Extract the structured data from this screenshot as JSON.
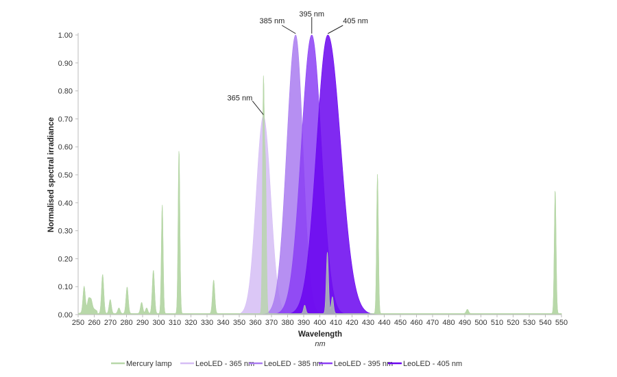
{
  "chart_data": {
    "type": "area",
    "title": "",
    "xlabel": "Wavelength",
    "xunit": "nm",
    "ylabel": "Normalised spectral irradiance",
    "xlim": [
      250,
      550
    ],
    "ylim": [
      0,
      1.0
    ],
    "xticks": [
      250,
      260,
      270,
      280,
      290,
      300,
      310,
      320,
      330,
      340,
      350,
      360,
      370,
      380,
      390,
      400,
      410,
      420,
      430,
      440,
      450,
      460,
      470,
      480,
      490,
      500,
      510,
      520,
      530,
      540,
      550
    ],
    "yticks": [
      "0.00",
      "0.10",
      "0.20",
      "0.30",
      "0.40",
      "0.50",
      "0.60",
      "0.70",
      "0.80",
      "0.90",
      "1.00"
    ],
    "grid": false,
    "legend_position": "bottom",
    "series": [
      {
        "name": "Mercury lamp",
        "color": "#b7d7a8",
        "peaks": [
          [
            253.7,
            0.09
          ],
          [
            256.5,
            0.035
          ],
          [
            258,
            0.03
          ],
          [
            265.2,
            0.14
          ],
          [
            269.9,
            0.05
          ],
          [
            275.3,
            0.02
          ],
          [
            280.4,
            0.095
          ],
          [
            289.4,
            0.04
          ],
          [
            292.5,
            0.02
          ],
          [
            296.7,
            0.155
          ],
          [
            302.2,
            0.39
          ],
          [
            312.6,
            0.59
          ],
          [
            334.1,
            0.12
          ],
          [
            365.0,
            0.82
          ],
          [
            366.3,
            0.5
          ],
          [
            390.6,
            0.03
          ],
          [
            404.7,
            0.22
          ],
          [
            407.8,
            0.06
          ],
          [
            435.8,
            0.5
          ],
          [
            491.6,
            0.015
          ],
          [
            546.1,
            0.445
          ]
        ]
      },
      {
        "name": "LeoLED - 365 nm",
        "color": "#d5bdf5",
        "peak_nm": 365,
        "peak_value": 0.71,
        "sigma_left": 4.5,
        "sigma_right": 4.5
      },
      {
        "name": "LeoLED - 385 nm",
        "color": "#a97bf0",
        "peak_nm": 385,
        "peak_value": 1.0,
        "sigma_left": 5.5,
        "sigma_right": 4.5
      },
      {
        "name": "LeoLED - 395 nm",
        "color": "#8b3ff5",
        "peak_nm": 395,
        "peak_value": 1.0,
        "sigma_left": 6.5,
        "sigma_right": 6
      },
      {
        "name": "LeoLED - 405 nm",
        "color": "#6a05ee",
        "peak_nm": 405,
        "peak_value": 1.0,
        "sigma_left": 7,
        "sigma_right": 8
      }
    ],
    "annotations": [
      {
        "text": "365 nm",
        "x": 365,
        "y": 0.71
      },
      {
        "text": "385 nm",
        "x": 385,
        "y": 1.0
      },
      {
        "text": "395 nm",
        "x": 395,
        "y": 1.0
      },
      {
        "text": "405 nm",
        "x": 405,
        "y": 1.0
      }
    ]
  }
}
